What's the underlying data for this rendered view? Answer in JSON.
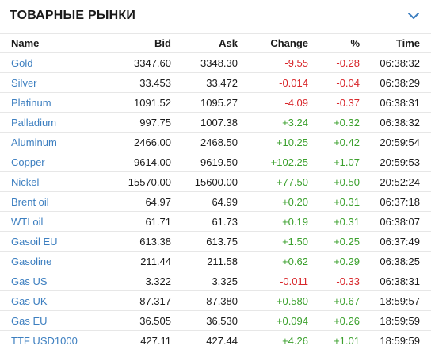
{
  "header": {
    "title": "ТОВАРНЫЕ РЫНКИ",
    "collapse_icon": "chevron-down-icon"
  },
  "colors": {
    "link": "#3d7fc0",
    "negative": "#d8262a",
    "positive": "#3ba02d"
  },
  "table": {
    "columns": [
      "Name",
      "Bid",
      "Ask",
      "Change",
      "%",
      "Time"
    ],
    "rows": [
      {
        "name": "Gold",
        "bid": "3347.60",
        "ask": "3348.30",
        "change": "-9.55",
        "pct": "-0.28",
        "time": "06:38:32",
        "dir": "neg"
      },
      {
        "name": "Silver",
        "bid": "33.453",
        "ask": "33.472",
        "change": "-0.014",
        "pct": "-0.04",
        "time": "06:38:29",
        "dir": "neg"
      },
      {
        "name": "Platinum",
        "bid": "1091.52",
        "ask": "1095.27",
        "change": "-4.09",
        "pct": "-0.37",
        "time": "06:38:31",
        "dir": "neg"
      },
      {
        "name": "Palladium",
        "bid": "997.75",
        "ask": "1007.38",
        "change": "+3.24",
        "pct": "+0.32",
        "time": "06:38:32",
        "dir": "pos"
      },
      {
        "name": "Aluminum",
        "bid": "2466.00",
        "ask": "2468.50",
        "change": "+10.25",
        "pct": "+0.42",
        "time": "20:59:54",
        "dir": "pos"
      },
      {
        "name": "Copper",
        "bid": "9614.00",
        "ask": "9619.50",
        "change": "+102.25",
        "pct": "+1.07",
        "time": "20:59:53",
        "dir": "pos"
      },
      {
        "name": "Nickel",
        "bid": "15570.00",
        "ask": "15600.00",
        "change": "+77.50",
        "pct": "+0.50",
        "time": "20:52:24",
        "dir": "pos"
      },
      {
        "name": "Brent oil",
        "bid": "64.97",
        "ask": "64.99",
        "change": "+0.20",
        "pct": "+0.31",
        "time": "06:37:18",
        "dir": "pos"
      },
      {
        "name": "WTI oil",
        "bid": "61.71",
        "ask": "61.73",
        "change": "+0.19",
        "pct": "+0.31",
        "time": "06:38:07",
        "dir": "pos"
      },
      {
        "name": "Gasoil EU",
        "bid": "613.38",
        "ask": "613.75",
        "change": "+1.50",
        "pct": "+0.25",
        "time": "06:37:49",
        "dir": "pos"
      },
      {
        "name": "Gasoline",
        "bid": "211.44",
        "ask": "211.58",
        "change": "+0.62",
        "pct": "+0.29",
        "time": "06:38:25",
        "dir": "pos"
      },
      {
        "name": "Gas US",
        "bid": "3.322",
        "ask": "3.325",
        "change": "-0.011",
        "pct": "-0.33",
        "time": "06:38:31",
        "dir": "neg"
      },
      {
        "name": "Gas UK",
        "bid": "87.317",
        "ask": "87.380",
        "change": "+0.580",
        "pct": "+0.67",
        "time": "18:59:57",
        "dir": "pos"
      },
      {
        "name": "Gas EU",
        "bid": "36.505",
        "ask": "36.530",
        "change": "+0.094",
        "pct": "+0.26",
        "time": "18:59:59",
        "dir": "pos"
      },
      {
        "name": "TTF USD1000",
        "bid": "427.11",
        "ask": "427.44",
        "change": "+4.26",
        "pct": "+1.01",
        "time": "18:59:59",
        "dir": "pos"
      }
    ]
  }
}
